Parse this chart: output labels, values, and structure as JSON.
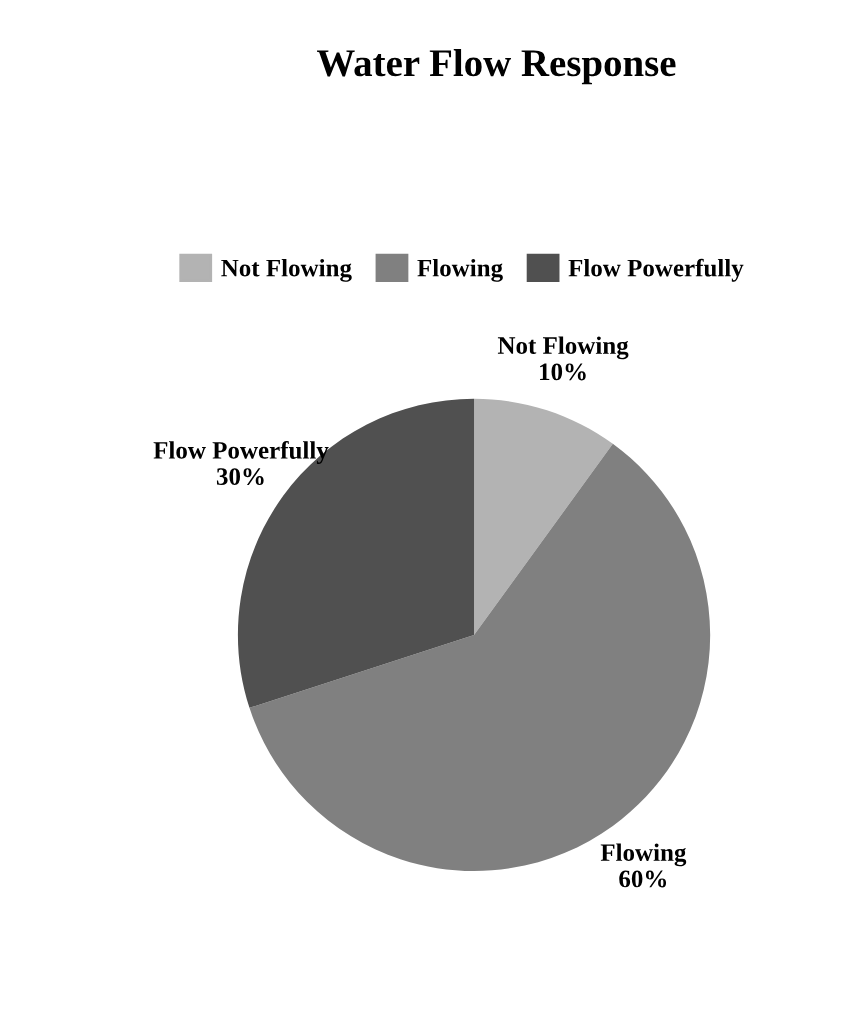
{
  "chart_data": {
    "type": "pie",
    "title": "Water Flow Response",
    "categories": [
      "Not Flowing",
      "Flowing",
      "Flow Powerfully"
    ],
    "values": [
      10,
      60,
      30
    ],
    "colors": [
      "#b3b3b3",
      "#808080",
      "#505050"
    ],
    "value_labels": [
      "10%",
      "60%",
      "30%"
    ],
    "legend": "top"
  }
}
